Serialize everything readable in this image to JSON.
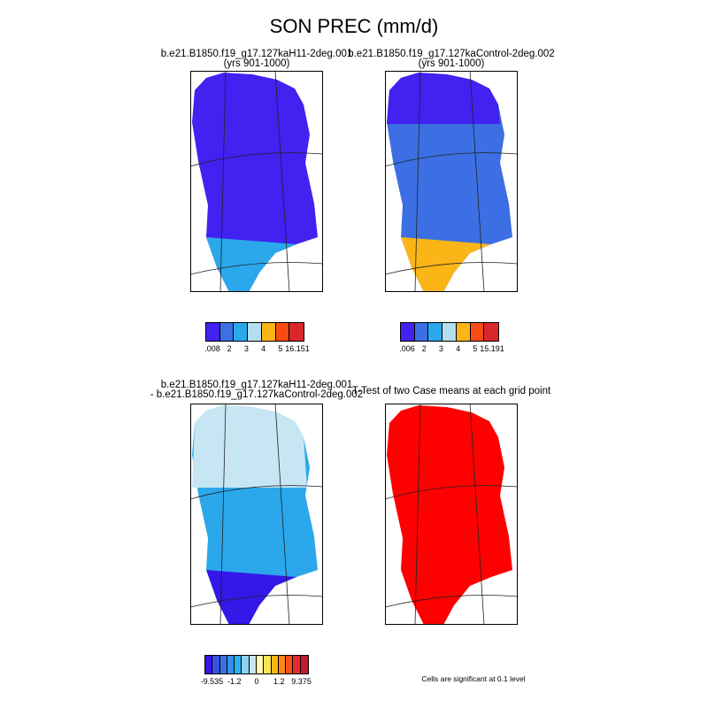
{
  "figure": {
    "title": "SON PREC (mm/d)",
    "significance_note": "Cells are significant at 0.1 level"
  },
  "chart_data": [
    {
      "type": "heatmap",
      "panel": "top-left",
      "title_lines": [
        "b.e21.B1850.f19_g17.127kaH11-2deg.001",
        "(yrs 901-1000)"
      ],
      "colorbar": {
        "colors": [
          "#4122f0",
          "#3b6fe3",
          "#2ba8ec",
          "#b4def0",
          "#fbb516",
          "#f94c12",
          "#d9282b"
        ],
        "tick_labels": [
          ".008",
          "2",
          "3",
          "4",
          "5",
          "16.151"
        ]
      }
    },
    {
      "type": "heatmap",
      "panel": "top-right",
      "title_lines": [
        "b.e21.B1850.f19_g17.127kaControl-2deg.002",
        "(yrs 901-1000)"
      ],
      "colorbar": {
        "colors": [
          "#4122f0",
          "#3b6fe3",
          "#2ba8ec",
          "#b4def0",
          "#fbb516",
          "#f94c12",
          "#d9282b"
        ],
        "tick_labels": [
          ".006",
          "2",
          "3",
          "4",
          "5",
          "15.191"
        ]
      }
    },
    {
      "type": "heatmap",
      "panel": "bottom-left",
      "title_lines": [
        "b.e21.B1850.f19_g17.127kaH11-2deg.001",
        "- b.e21.B1850.f19_g17.127kaControl-2deg.002"
      ],
      "colorbar": {
        "colors": [
          "#3517e8",
          "#3a4fe4",
          "#3b71e6",
          "#2f92ea",
          "#30b0ef",
          "#8ed0ef",
          "#c6e6f3",
          "#fff9b4",
          "#fde44e",
          "#fbb516",
          "#f98614",
          "#f6501a",
          "#e62a26",
          "#c51a2a"
        ],
        "tick_labels": [
          "-9.535",
          "-1.2",
          "0",
          "1.2",
          "9.375"
        ]
      }
    },
    {
      "type": "heatmap",
      "panel": "bottom-right",
      "title_lines": [
        "T-Test of two Case means at each grid point"
      ]
    }
  ]
}
